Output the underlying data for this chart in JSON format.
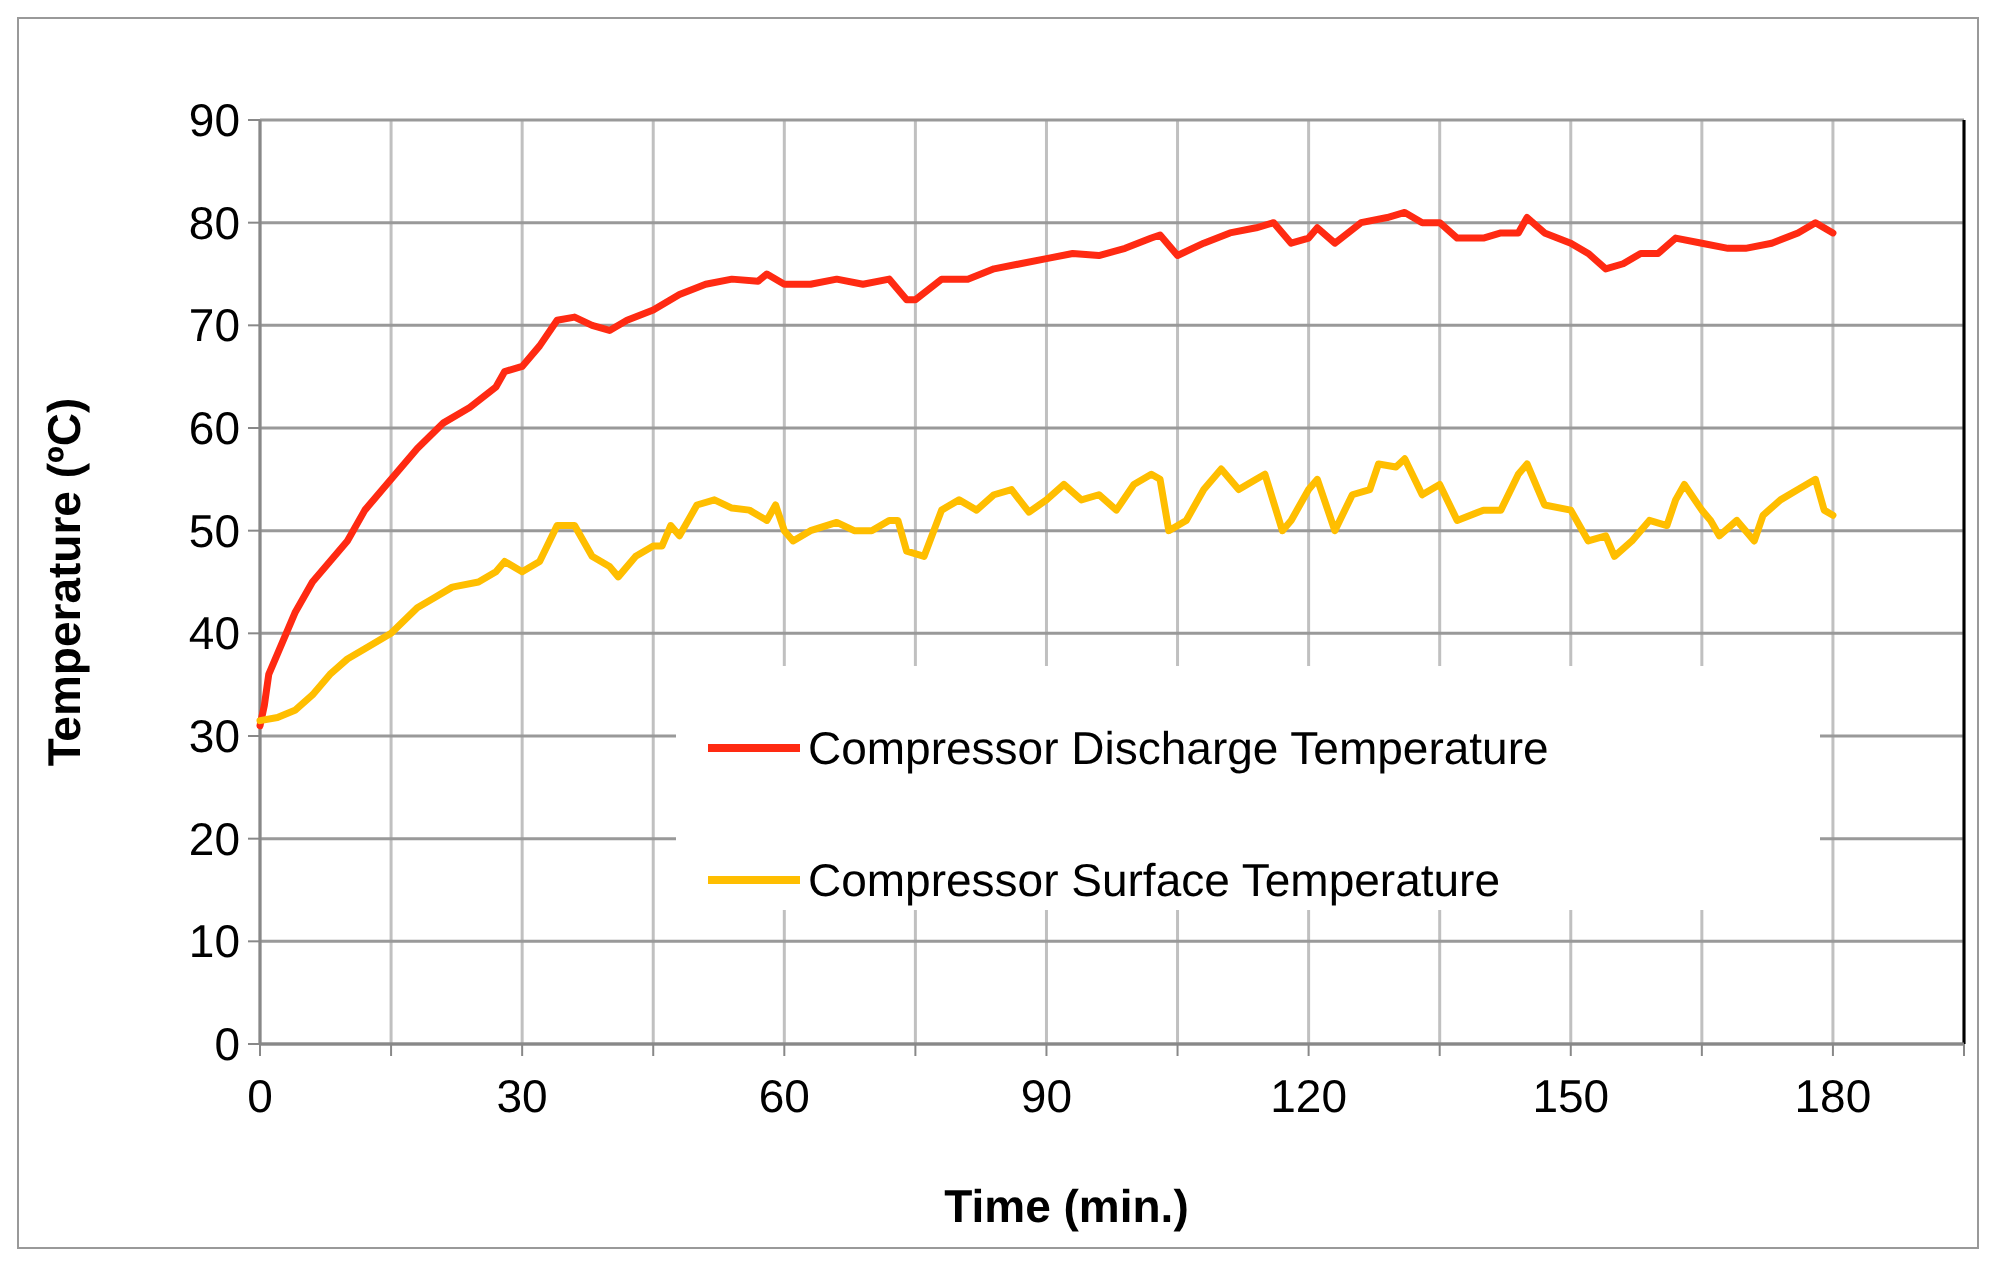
{
  "chart_data": {
    "type": "line",
    "xlabel": "Time (min.)",
    "ylabel": "Temperature (ºC)",
    "xlim": [
      0,
      195
    ],
    "ylim": [
      0,
      90
    ],
    "xticks": [
      0,
      {
        "value": 15,
        "label": null
      },
      30,
      {
        "value": 45,
        "label": null
      },
      60,
      {
        "value": 75,
        "label": null
      },
      90,
      {
        "value": 105,
        "label": null
      },
      120,
      {
        "value": 135,
        "label": null
      },
      150,
      {
        "value": 165,
        "label": null
      },
      180,
      {
        "value": 195,
        "label": null
      }
    ],
    "yticks": [
      0,
      10,
      20,
      30,
      40,
      50,
      60,
      70,
      80,
      90
    ],
    "grid": true,
    "legend": "bottom right",
    "marker": "none",
    "line_style": "solid",
    "series": [
      {
        "name": "Compressor Discharge Temperature",
        "color": "#ff2a12",
        "x": [
          0,
          0.5,
          1,
          2,
          4,
          6,
          8,
          10,
          12,
          15,
          18,
          21,
          24,
          27,
          28,
          30,
          32,
          34,
          36,
          38,
          40,
          42,
          45,
          48,
          51,
          54,
          57,
          58,
          60,
          63,
          66,
          69,
          72,
          74,
          75,
          78,
          81,
          84,
          87,
          90,
          93,
          96,
          99,
          102,
          103,
          105,
          108,
          111,
          114,
          116,
          118,
          120,
          121,
          123,
          126,
          129,
          131,
          133,
          135,
          137,
          140,
          142,
          144,
          145,
          147,
          150,
          152,
          154,
          156,
          158,
          160,
          162,
          165,
          168,
          170,
          173,
          176,
          178,
          180
        ],
        "values": [
          31,
          33,
          36,
          38,
          42,
          45,
          47,
          49,
          52,
          55,
          58,
          60.5,
          62,
          64,
          65.5,
          66,
          68,
          70.5,
          70.8,
          70,
          69.5,
          70.5,
          71.5,
          73,
          74,
          74.5,
          74.3,
          75,
          74,
          74,
          74.5,
          74,
          74.5,
          72.5,
          72.5,
          74.5,
          74.5,
          75.5,
          76,
          76.5,
          77,
          76.8,
          77.5,
          78.5,
          78.8,
          76.8,
          78,
          79,
          79.5,
          80,
          78,
          78.5,
          79.5,
          78,
          80,
          80.5,
          81,
          80,
          80,
          78.5,
          78.5,
          79,
          79,
          80.5,
          79,
          78,
          77,
          75.5,
          76,
          77,
          77,
          78.5,
          78,
          77.5,
          77.5,
          78,
          79,
          80,
          79
        ]
      },
      {
        "name": "Compressor Surface Temperature",
        "color": "#ffbe00",
        "x": [
          0,
          2,
          4,
          6,
          8,
          10,
          12,
          15,
          18,
          20,
          22,
          25,
          27,
          28,
          30,
          32,
          34,
          36,
          38,
          40,
          41,
          43,
          45,
          46,
          47,
          48,
          50,
          52,
          54,
          56,
          58,
          59,
          60,
          61,
          63,
          66,
          68,
          70,
          72,
          73,
          74,
          76,
          78,
          80,
          82,
          84,
          86,
          88,
          90,
          92,
          94,
          96,
          98,
          100,
          102,
          103,
          104,
          106,
          108,
          110,
          112,
          114,
          115,
          117,
          118,
          120,
          121,
          123,
          125,
          127,
          128,
          130,
          131,
          133,
          135,
          137,
          140,
          142,
          144,
          145,
          147,
          150,
          152,
          154,
          155,
          157,
          159,
          161,
          162,
          163,
          165,
          166,
          167,
          169,
          171,
          172,
          174,
          176,
          178,
          179,
          180
        ],
        "values": [
          31.5,
          31.8,
          32.5,
          34,
          36,
          37.5,
          38.5,
          40,
          42.5,
          43.5,
          44.5,
          45,
          46,
          47,
          46,
          47,
          50.5,
          50.5,
          47.5,
          46.5,
          45.5,
          47.5,
          48.5,
          48.5,
          50.5,
          49.5,
          52.5,
          53,
          52.2,
          52,
          51,
          52.5,
          50,
          49,
          50,
          50.8,
          50,
          50,
          51,
          51,
          48,
          47.5,
          52,
          53,
          52,
          53.5,
          54,
          51.8,
          53,
          54.5,
          53,
          53.5,
          52,
          54.5,
          55.5,
          55,
          50,
          51,
          54,
          56,
          54,
          55,
          55.5,
          50,
          51,
          54,
          55,
          50,
          53.5,
          54,
          56.5,
          56.2,
          57,
          53.5,
          54.5,
          51,
          52,
          52,
          55.5,
          56.5,
          52.5,
          52,
          49,
          49.5,
          47.5,
          49,
          51,
          50.5,
          53,
          54.5,
          52,
          51,
          49.5,
          51,
          49,
          51.5,
          53,
          54,
          55,
          52,
          51.5
        ]
      }
    ]
  }
}
